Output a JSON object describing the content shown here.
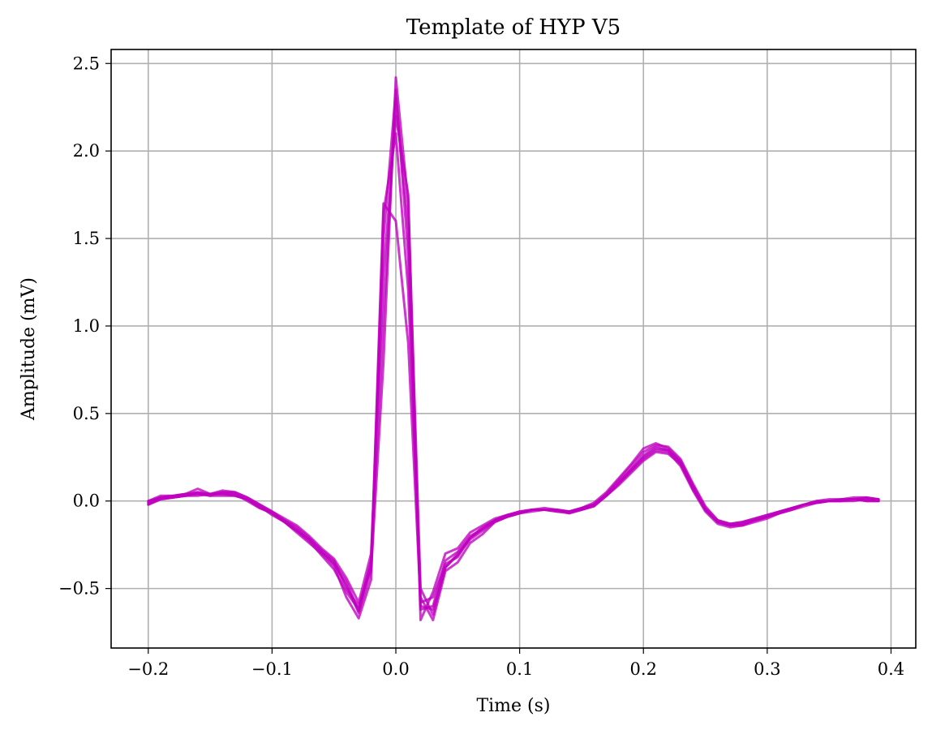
{
  "chart_data": {
    "type": "line",
    "title": "Template of HYP V5",
    "xlabel": "Time (s)",
    "ylabel": "Amplitude (mV)",
    "xlim": [
      -0.23,
      0.42
    ],
    "ylim": [
      -0.84,
      2.58
    ],
    "xticks": [
      -0.2,
      -0.1,
      0.0,
      0.1,
      0.2,
      0.3,
      0.4
    ],
    "xtick_labels": [
      "−0.2",
      "−0.1",
      "0.0",
      "0.1",
      "0.2",
      "0.3",
      "0.4"
    ],
    "yticks": [
      -0.5,
      0.0,
      0.5,
      1.0,
      1.5,
      2.0,
      2.5
    ],
    "ytick_labels": [
      "−0.5",
      "0.0",
      "0.5",
      "1.0",
      "1.5",
      "2.0",
      "2.5"
    ],
    "grid": true,
    "legend": false,
    "color": "#bf00bf",
    "x": [
      -0.2,
      -0.19,
      -0.18,
      -0.17,
      -0.16,
      -0.15,
      -0.14,
      -0.13,
      -0.12,
      -0.11,
      -0.1,
      -0.09,
      -0.08,
      -0.07,
      -0.06,
      -0.05,
      -0.04,
      -0.03,
      -0.02,
      -0.01,
      0.0,
      0.01,
      0.02,
      0.03,
      0.04,
      0.05,
      0.06,
      0.07,
      0.08,
      0.09,
      0.1,
      0.11,
      0.12,
      0.13,
      0.14,
      0.15,
      0.16,
      0.17,
      0.18,
      0.19,
      0.2,
      0.21,
      0.22,
      0.23,
      0.24,
      0.25,
      0.26,
      0.27,
      0.28,
      0.29,
      0.3,
      0.31,
      0.32,
      0.33,
      0.34,
      0.35,
      0.36,
      0.37,
      0.38,
      0.39
    ],
    "series": [
      {
        "values": [
          -0.01,
          0.02,
          0.03,
          0.04,
          0.04,
          0.04,
          0.04,
          0.04,
          0.01,
          -0.03,
          -0.07,
          -0.11,
          -0.16,
          -0.22,
          -0.29,
          -0.36,
          -0.48,
          -0.64,
          -0.4,
          0.8,
          2.42,
          1.7,
          -0.5,
          -0.65,
          -0.38,
          -0.31,
          -0.22,
          -0.17,
          -0.12,
          -0.09,
          -0.07,
          -0.05,
          -0.05,
          -0.05,
          -0.06,
          -0.04,
          -0.02,
          0.04,
          0.11,
          0.18,
          0.26,
          0.31,
          0.29,
          0.22,
          0.08,
          -0.05,
          -0.12,
          -0.14,
          -0.13,
          -0.11,
          -0.09,
          -0.07,
          -0.05,
          -0.03,
          -0.01,
          0.0,
          0.0,
          0.01,
          0.01,
          0.01
        ]
      },
      {
        "values": [
          -0.02,
          0.01,
          0.02,
          0.03,
          0.05,
          0.03,
          0.05,
          0.04,
          0.0,
          -0.04,
          -0.07,
          -0.12,
          -0.17,
          -0.23,
          -0.31,
          -0.39,
          -0.52,
          -0.62,
          -0.34,
          1.05,
          2.3,
          1.55,
          -0.62,
          -0.6,
          -0.34,
          -0.29,
          -0.2,
          -0.16,
          -0.11,
          -0.08,
          -0.07,
          -0.05,
          -0.05,
          -0.06,
          -0.07,
          -0.05,
          -0.03,
          0.03,
          0.1,
          0.17,
          0.24,
          0.29,
          0.28,
          0.2,
          0.06,
          -0.06,
          -0.13,
          -0.15,
          -0.14,
          -0.12,
          -0.1,
          -0.07,
          -0.05,
          -0.02,
          -0.01,
          0.0,
          0.01,
          0.01,
          0.0,
          0.0
        ]
      },
      {
        "values": [
          0.0,
          0.02,
          0.03,
          0.04,
          0.07,
          0.04,
          0.06,
          0.05,
          0.02,
          -0.02,
          -0.06,
          -0.1,
          -0.14,
          -0.2,
          -0.27,
          -0.33,
          -0.44,
          -0.58,
          -0.3,
          1.3,
          2.2,
          1.75,
          -0.68,
          -0.52,
          -0.3,
          -0.27,
          -0.18,
          -0.14,
          -0.1,
          -0.08,
          -0.06,
          -0.05,
          -0.04,
          -0.05,
          -0.06,
          -0.04,
          -0.01,
          0.05,
          0.13,
          0.21,
          0.3,
          0.33,
          0.3,
          0.23,
          0.09,
          -0.04,
          -0.11,
          -0.13,
          -0.12,
          -0.1,
          -0.08,
          -0.06,
          -0.04,
          -0.02,
          0.0,
          0.01,
          0.01,
          0.02,
          0.02,
          0.01
        ]
      },
      {
        "values": [
          -0.01,
          0.02,
          0.02,
          0.03,
          0.04,
          0.03,
          0.03,
          0.03,
          0.01,
          -0.03,
          -0.08,
          -0.12,
          -0.18,
          -0.24,
          -0.3,
          -0.37,
          -0.55,
          -0.67,
          -0.45,
          1.65,
          2.1,
          1.2,
          -0.55,
          -0.68,
          -0.4,
          -0.35,
          -0.24,
          -0.19,
          -0.12,
          -0.09,
          -0.07,
          -0.06,
          -0.05,
          -0.05,
          -0.06,
          -0.05,
          -0.02,
          0.03,
          0.09,
          0.16,
          0.23,
          0.28,
          0.27,
          0.21,
          0.07,
          -0.05,
          -0.12,
          -0.14,
          -0.13,
          -0.11,
          -0.09,
          -0.06,
          -0.04,
          -0.02,
          -0.01,
          0.0,
          0.0,
          0.0,
          0.01,
          0.0
        ]
      },
      {
        "values": [
          0.0,
          0.03,
          0.03,
          0.04,
          0.05,
          0.04,
          0.05,
          0.05,
          0.02,
          -0.02,
          -0.06,
          -0.11,
          -0.15,
          -0.21,
          -0.28,
          -0.34,
          -0.5,
          -0.6,
          -0.38,
          1.7,
          1.6,
          0.9,
          -0.58,
          -0.55,
          -0.36,
          -0.32,
          -0.21,
          -0.16,
          -0.11,
          -0.08,
          -0.06,
          -0.05,
          -0.05,
          -0.06,
          -0.06,
          -0.04,
          -0.02,
          0.04,
          0.12,
          0.2,
          0.28,
          0.32,
          0.31,
          0.24,
          0.1,
          -0.03,
          -0.11,
          -0.13,
          -0.12,
          -0.1,
          -0.08,
          -0.06,
          -0.04,
          -0.02,
          0.0,
          0.0,
          0.01,
          0.01,
          0.02,
          0.01
        ]
      },
      {
        "values": [
          -0.02,
          0.01,
          0.02,
          0.03,
          0.03,
          0.04,
          0.04,
          0.03,
          0.01,
          -0.04,
          -0.07,
          -0.12,
          -0.17,
          -0.22,
          -0.29,
          -0.35,
          -0.46,
          -0.63,
          -0.36,
          1.5,
          2.35,
          1.4,
          -0.6,
          -0.62,
          -0.38,
          -0.3,
          -0.21,
          -0.15,
          -0.11,
          -0.09,
          -0.07,
          -0.05,
          -0.05,
          -0.05,
          -0.07,
          -0.05,
          -0.03,
          0.03,
          0.1,
          0.18,
          0.25,
          0.3,
          0.29,
          0.22,
          0.07,
          -0.05,
          -0.12,
          -0.14,
          -0.14,
          -0.11,
          -0.09,
          -0.07,
          -0.04,
          -0.02,
          -0.01,
          0.0,
          0.0,
          0.01,
          0.0,
          0.0
        ]
      }
    ]
  }
}
